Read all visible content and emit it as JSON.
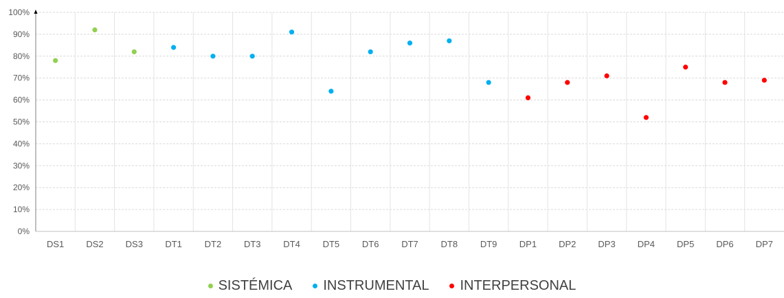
{
  "chart_data": {
    "type": "scatter",
    "categories": [
      "DS1",
      "DS2",
      "DS3",
      "DT1",
      "DT2",
      "DT3",
      "DT4",
      "DT5",
      "DT6",
      "DT7",
      "DT8",
      "DT9",
      "DP1",
      "DP2",
      "DP3",
      "DP4",
      "DP5",
      "DP6",
      "DP7"
    ],
    "series": [
      {
        "name": "SISTÉMICA",
        "color": "#92d050",
        "points": [
          {
            "x": "DS1",
            "y": 78
          },
          {
            "x": "DS2",
            "y": 92
          },
          {
            "x": "DS3",
            "y": 82
          }
        ]
      },
      {
        "name": "INSTRUMENTAL",
        "color": "#00b0f0",
        "points": [
          {
            "x": "DT1",
            "y": 84
          },
          {
            "x": "DT2",
            "y": 80
          },
          {
            "x": "DT3",
            "y": 80
          },
          {
            "x": "DT4",
            "y": 91
          },
          {
            "x": "DT5",
            "y": 64
          },
          {
            "x": "DT6",
            "y": 82
          },
          {
            "x": "DT7",
            "y": 86
          },
          {
            "x": "DT8",
            "y": 87
          },
          {
            "x": "DT9",
            "y": 68
          }
        ]
      },
      {
        "name": "INTERPERSONAL",
        "color": "#ff0000",
        "points": [
          {
            "x": "DP1",
            "y": 61
          },
          {
            "x": "DP2",
            "y": 68
          },
          {
            "x": "DP3",
            "y": 71
          },
          {
            "x": "DP4",
            "y": 52
          },
          {
            "x": "DP5",
            "y": 75
          },
          {
            "x": "DP6",
            "y": 68
          },
          {
            "x": "DP7",
            "y": 69
          }
        ]
      }
    ],
    "yticks": [
      "0%",
      "10%",
      "20%",
      "30%",
      "40%",
      "50%",
      "60%",
      "70%",
      "80%",
      "90%",
      "100%"
    ],
    "ylim": [
      0,
      100
    ],
    "title": "",
    "xlabel": "",
    "ylabel": "",
    "grid": true,
    "legend_position": "bottom"
  }
}
